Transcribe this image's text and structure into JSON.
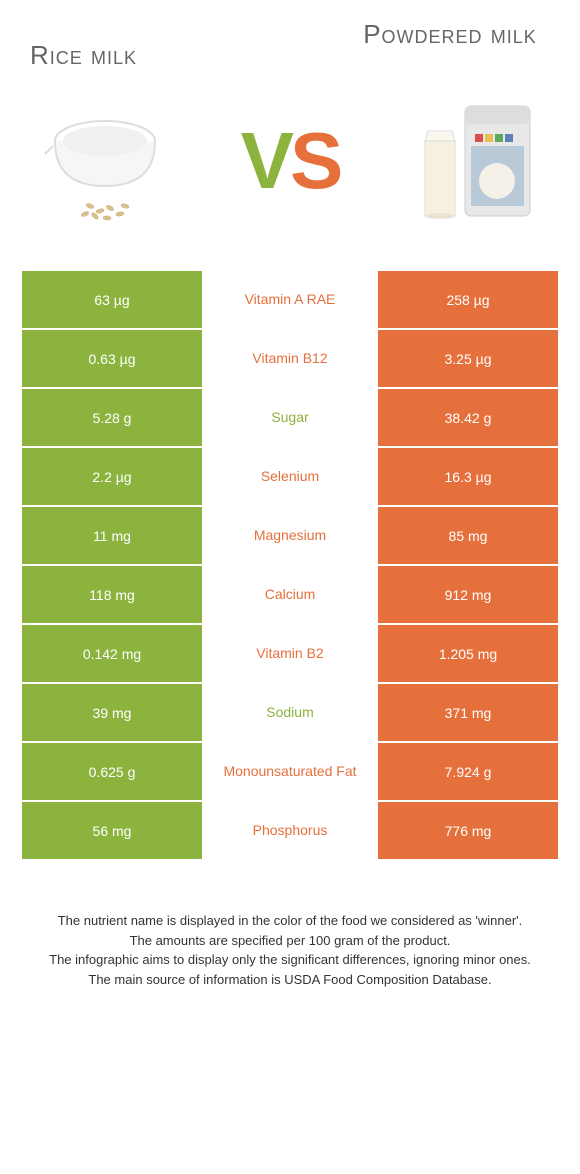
{
  "colors": {
    "green": "#8db33f",
    "orange": "#e6703c",
    "text": "#666666"
  },
  "left_title": "Rice milk",
  "right_title": "Powdered milk",
  "vs_v": "V",
  "vs_s": "S",
  "rows": [
    {
      "left": "63 µg",
      "mid": "Vitamin A RAE",
      "right": "258 µg",
      "winner": "right"
    },
    {
      "left": "0.63 µg",
      "mid": "Vitamin B12",
      "right": "3.25 µg",
      "winner": "right"
    },
    {
      "left": "5.28 g",
      "mid": "Sugar",
      "right": "38.42 g",
      "winner": "left"
    },
    {
      "left": "2.2 µg",
      "mid": "Selenium",
      "right": "16.3 µg",
      "winner": "right"
    },
    {
      "left": "11 mg",
      "mid": "Magnesium",
      "right": "85 mg",
      "winner": "right"
    },
    {
      "left": "118 mg",
      "mid": "Calcium",
      "right": "912 mg",
      "winner": "right"
    },
    {
      "left": "0.142 mg",
      "mid": "Vitamin B2",
      "right": "1.205 mg",
      "winner": "right"
    },
    {
      "left": "39 mg",
      "mid": "Sodium",
      "right": "371 mg",
      "winner": "left"
    },
    {
      "left": "0.625 g",
      "mid": "Monounsaturated Fat",
      "right": "7.924 g",
      "winner": "right"
    },
    {
      "left": "56 mg",
      "mid": "Phosphorus",
      "right": "776 mg",
      "winner": "right"
    }
  ],
  "footer": {
    "l1": "The nutrient name is displayed in the color of the food we considered as 'winner'.",
    "l2": "The amounts are specified per 100 gram of the product.",
    "l3": "The infographic aims to display only the significant differences, ignoring minor ones.",
    "l4": "The main source of information is USDA Food Composition Database."
  }
}
